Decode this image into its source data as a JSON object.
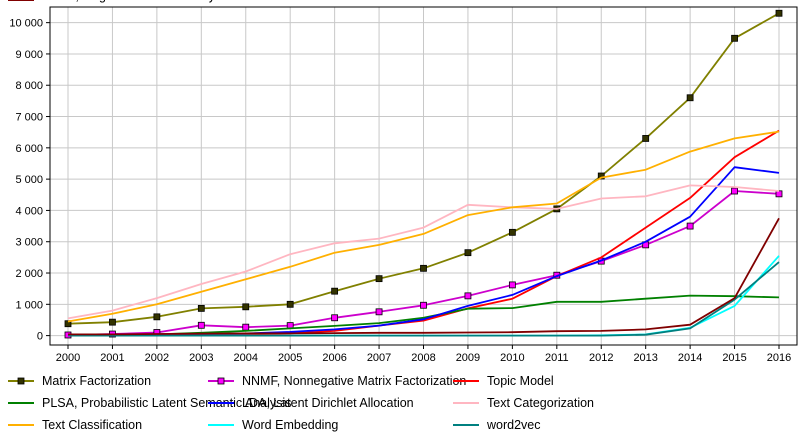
{
  "chart_data": {
    "type": "line",
    "title": "",
    "xlabel": "",
    "ylabel": "",
    "x": [
      2000,
      2001,
      2002,
      2003,
      2004,
      2005,
      2006,
      2007,
      2008,
      2009,
      2010,
      2011,
      2012,
      2013,
      2014,
      2015,
      2016
    ],
    "x_tick_labels": [
      "2000",
      "2001",
      "2002",
      "2003",
      "2004",
      "2005",
      "2006",
      "2007",
      "2008",
      "2009",
      "2010",
      "2011",
      "2012",
      "2013",
      "2014",
      "2015",
      "2016"
    ],
    "ylim": [
      -300,
      10500
    ],
    "y_ticks": [
      0,
      1000,
      2000,
      3000,
      4000,
      5000,
      6000,
      7000,
      8000,
      9000,
      10000
    ],
    "y_tick_labels": [
      "0",
      "1 000",
      "2 000",
      "3 000",
      "4 000",
      "5 000",
      "6 000",
      "7 000",
      "8 000",
      "9 000",
      "10 000"
    ],
    "grid": true,
    "legend_position": "bottom",
    "series": [
      {
        "name": "Matrix Factorization",
        "color": "#808000",
        "marker": "square",
        "marker_fill": "#333300",
        "values": [
          380,
          430,
          600,
          870,
          920,
          1000,
          1420,
          1820,
          2150,
          2650,
          3300,
          4050,
          5100,
          6300,
          7600,
          9500,
          10300
        ]
      },
      {
        "name": "NNMF, Nonnegative Matrix Factorization",
        "color": "#cc00cc",
        "marker": "square",
        "marker_fill": "#ff00ff",
        "values": [
          20,
          50,
          100,
          330,
          270,
          320,
          570,
          760,
          970,
          1270,
          1620,
          1930,
          2380,
          2900,
          3500,
          4620,
          4530
        ]
      },
      {
        "name": "Topic Model",
        "color": "#ff0000",
        "marker": "none",
        "values": [
          0,
          0,
          10,
          20,
          40,
          70,
          150,
          320,
          480,
          870,
          1180,
          1900,
          2500,
          3450,
          4400,
          5700,
          6550
        ]
      },
      {
        "name": "PLSA, Probabilistic Latent Semantic Analysis",
        "color": "#008000",
        "marker": "none",
        "values": [
          0,
          10,
          40,
          90,
          150,
          230,
          310,
          400,
          570,
          860,
          880,
          1080,
          1080,
          1180,
          1280,
          1260,
          1220
        ]
      },
      {
        "name": "LDA, Latent Dirichlet Allocation",
        "color": "#0000ff",
        "marker": "none",
        "values": [
          0,
          0,
          20,
          40,
          70,
          120,
          200,
          320,
          520,
          950,
          1300,
          1900,
          2400,
          3000,
          3800,
          5380,
          5200
        ]
      },
      {
        "name": "Text Categorization",
        "color": "#ffb6c1",
        "marker": "none",
        "values": [
          550,
          800,
          1200,
          1650,
          2050,
          2600,
          2950,
          3100,
          3450,
          4180,
          4100,
          4050,
          4380,
          4450,
          4800,
          4750,
          4620
        ]
      },
      {
        "name": "Text Classification",
        "color": "#ffb000",
        "marker": "none",
        "values": [
          450,
          700,
          1000,
          1400,
          1800,
          2200,
          2650,
          2900,
          3250,
          3850,
          4100,
          4220,
          5050,
          5300,
          5880,
          6300,
          6520
        ]
      },
      {
        "name": "Word Embedding",
        "color": "#00ffff",
        "marker": "none",
        "values": [
          0,
          0,
          0,
          0,
          0,
          0,
          0,
          0,
          0,
          0,
          0,
          0,
          10,
          40,
          250,
          950,
          2550
        ]
      },
      {
        "name": "word2vec",
        "color": "#008080",
        "marker": "none",
        "values": [
          0,
          0,
          0,
          0,
          0,
          0,
          0,
          0,
          0,
          0,
          0,
          0,
          0,
          30,
          230,
          1150,
          2350
        ]
      },
      {
        "name": "LSTM, long short-term memory",
        "color": "#800000",
        "marker": "none",
        "values": [
          40,
          40,
          50,
          60,
          70,
          70,
          80,
          90,
          90,
          100,
          110,
          140,
          150,
          200,
          350,
          1200,
          3750
        ]
      }
    ]
  }
}
